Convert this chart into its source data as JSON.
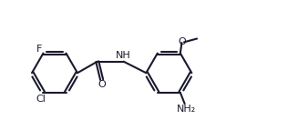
{
  "bg_color": "#ffffff",
  "line_color": "#1a1a2e",
  "line_width": 1.5,
  "font_size": 8.0,
  "fig_width": 3.38,
  "fig_height": 1.54,
  "dpi": 100,
  "xlim": [
    0.0,
    10.5
  ],
  "ylim": [
    0.5,
    4.8
  ]
}
